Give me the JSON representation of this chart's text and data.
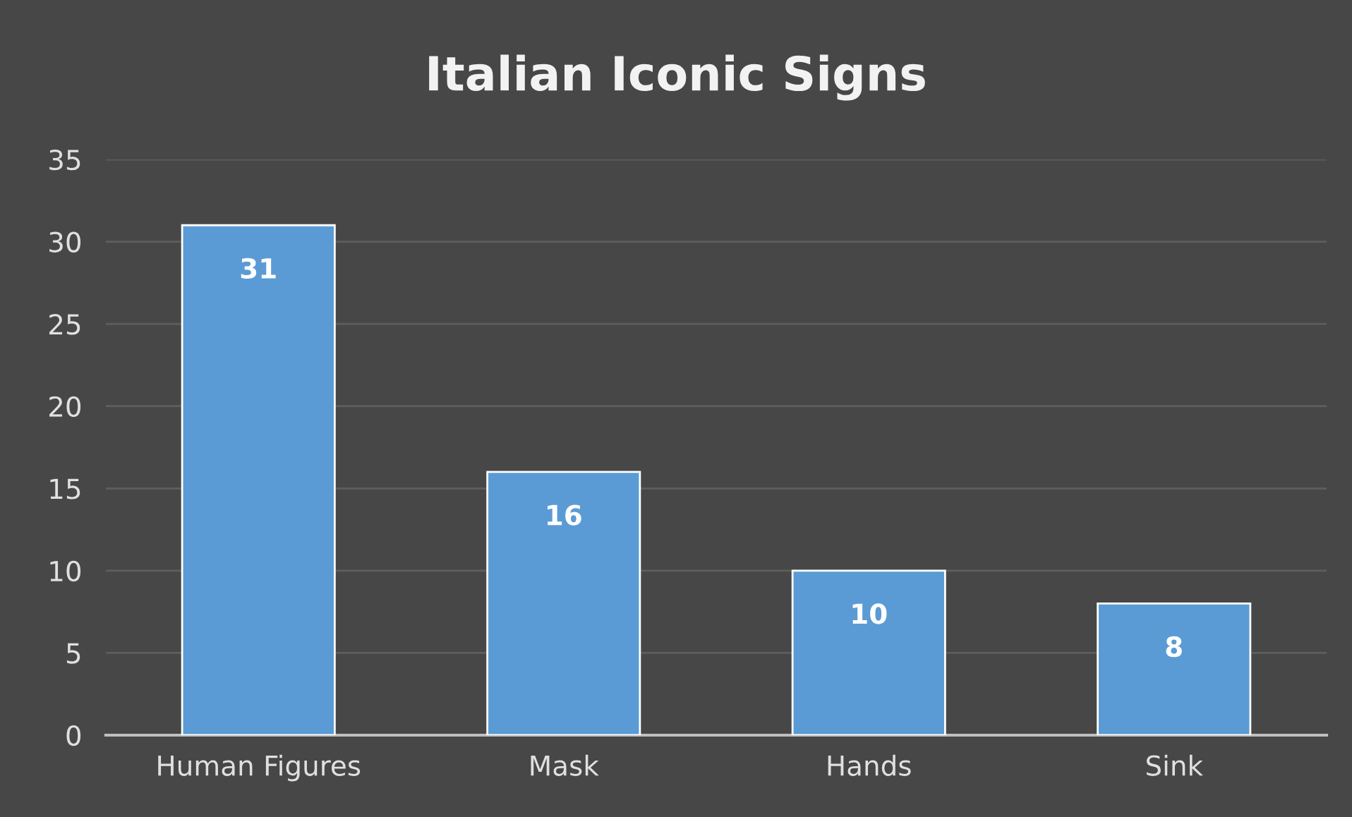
{
  "chart_data": {
    "type": "bar",
    "title": "Italian Iconic Signs",
    "categories": [
      "Human Figures",
      "Mask",
      "Hands",
      "Sink"
    ],
    "values": [
      31,
      16,
      10,
      8
    ],
    "color": "#5b9bd5",
    "ylim": [
      0,
      35
    ],
    "yticks": [
      0,
      5,
      10,
      15,
      20,
      25,
      30,
      35
    ],
    "grid": "y",
    "data_labels": true
  }
}
